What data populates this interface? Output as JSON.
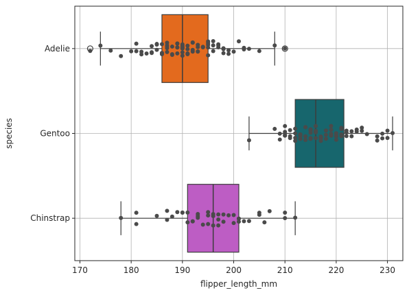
{
  "chart_data": {
    "type": "box",
    "orientation": "horizontal",
    "xlabel": "flipper_length_mm",
    "ylabel": "species",
    "xlim": [
      169,
      233
    ],
    "xticks": [
      170,
      180,
      190,
      200,
      210,
      220,
      230
    ],
    "xtick_labels": [
      "170",
      "180",
      "190",
      "200",
      "210",
      "220",
      "230"
    ],
    "grid": true,
    "categories": [
      "Adelie",
      "Gentoo",
      "Chinstrap"
    ],
    "boxes": [
      {
        "category": "Adelie",
        "color": "#e36a1e",
        "q1": 186,
        "median": 190,
        "q3": 195,
        "whisker_low": 174,
        "whisker_high": 208,
        "fliers": [
          172,
          210
        ]
      },
      {
        "category": "Gentoo",
        "color": "#17666d",
        "q1": 212,
        "median": 216,
        "q3": 221.5,
        "whisker_low": 203,
        "whisker_high": 231,
        "fliers": []
      },
      {
        "category": "Chinstrap",
        "color": "#bd5dc4",
        "q1": 191,
        "median": 196,
        "q3": 201,
        "whisker_low": 178,
        "whisker_high": 212,
        "fliers": []
      }
    ],
    "points": [
      {
        "category": "Adelie",
        "values": [
          172,
          174,
          176,
          178,
          180,
          181,
          181,
          182,
          182,
          183,
          184,
          184,
          184,
          185,
          185,
          185,
          186,
          186,
          186,
          186,
          187,
          187,
          187,
          187,
          187,
          188,
          188,
          188,
          189,
          189,
          189,
          189,
          189,
          190,
          190,
          190,
          190,
          190,
          190,
          190,
          190,
          191,
          191,
          191,
          191,
          191,
          192,
          192,
          192,
          192,
          193,
          193,
          193,
          193,
          194,
          194,
          194,
          195,
          195,
          195,
          195,
          195,
          196,
          196,
          196,
          197,
          197,
          197,
          198,
          198,
          198,
          199,
          199,
          200,
          201,
          202,
          202,
          203,
          205,
          208,
          210
        ]
      },
      {
        "category": "Gentoo",
        "values": [
          203,
          208,
          209,
          209,
          210,
          210,
          210,
          210,
          210,
          211,
          211,
          211,
          212,
          212,
          212,
          212,
          213,
          213,
          213,
          213,
          214,
          214,
          214,
          214,
          215,
          215,
          215,
          215,
          215,
          215,
          216,
          216,
          216,
          216,
          216,
          217,
          217,
          217,
          217,
          218,
          218,
          218,
          219,
          219,
          219,
          219,
          220,
          220,
          220,
          220,
          220,
          221,
          221,
          221,
          221,
          222,
          222,
          222,
          223,
          223,
          224,
          224,
          225,
          225,
          226,
          228,
          228,
          229,
          229,
          230,
          230,
          231
        ]
      },
      {
        "category": "Chinstrap",
        "values": [
          178,
          181,
          181,
          185,
          187,
          187,
          188,
          189,
          190,
          190,
          191,
          191,
          192,
          192,
          193,
          193,
          193,
          194,
          195,
          195,
          195,
          196,
          196,
          196,
          197,
          197,
          197,
          198,
          198,
          199,
          200,
          200,
          201,
          201,
          201,
          202,
          203,
          205,
          205,
          206,
          207,
          210,
          210,
          212
        ]
      }
    ],
    "point_color": "#4a4a4a"
  }
}
